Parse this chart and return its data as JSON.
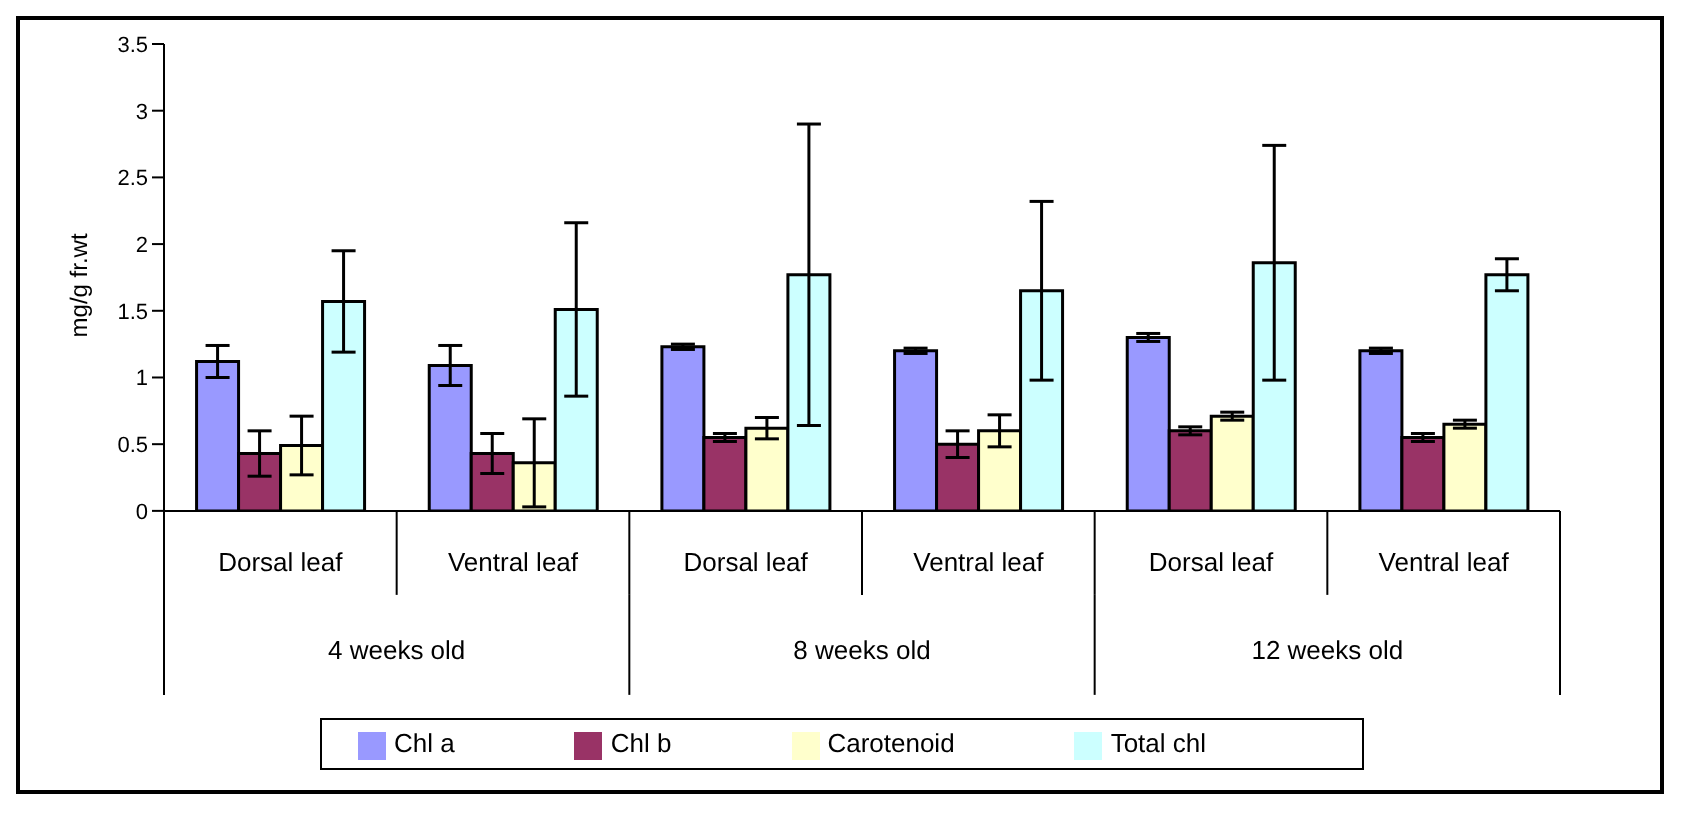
{
  "chart_data": {
    "type": "bar",
    "ylabel": "mg/g fr.wt",
    "categories": [
      "Dorsal leaf",
      "Ventral leaf",
      "Dorsal leaf",
      "Ventral leaf",
      "Dorsal leaf",
      "Ventral leaf"
    ],
    "annotations": [
      "4 weeks old",
      "8 weeks old",
      "12 weeks old"
    ],
    "series": [
      {
        "name": "Chl a",
        "color": "#9999ff",
        "values": [
          1.12,
          1.09,
          1.23,
          1.2,
          1.3,
          1.2
        ],
        "errors": [
          0.12,
          0.15,
          0.02,
          0.02,
          0.03,
          0.02
        ]
      },
      {
        "name": "Chl b",
        "color": "#993366",
        "values": [
          0.43,
          0.43,
          0.55,
          0.5,
          0.6,
          0.55
        ],
        "errors": [
          0.17,
          0.15,
          0.03,
          0.1,
          0.03,
          0.03
        ]
      },
      {
        "name": "Carotenoid",
        "color": "#ffffcc",
        "values": [
          0.49,
          0.36,
          0.62,
          0.6,
          0.71,
          0.65
        ],
        "errors": [
          0.22,
          0.33,
          0.08,
          0.12,
          0.03,
          0.03
        ]
      },
      {
        "name": "Total chl",
        "color": "#ccffff",
        "values": [
          1.57,
          1.51,
          1.77,
          1.65,
          1.86,
          1.77
        ],
        "errors": [
          0.38,
          0.65,
          1.13,
          0.67,
          0.88,
          0.12
        ]
      }
    ],
    "ylim": [
      0,
      3.5
    ],
    "yticks": [
      0,
      0.5,
      1,
      1.5,
      2,
      2.5,
      3,
      3.5
    ],
    "grid": false,
    "legend": "bottom"
  }
}
